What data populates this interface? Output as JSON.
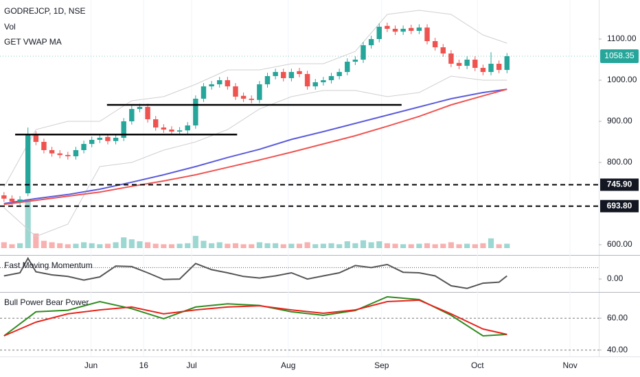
{
  "chart_data": [
    {
      "type": "candlestick",
      "title": "GODREJCP, 1D, NSE",
      "indicators": [
        "Vol",
        "GET VWAP MA"
      ],
      "xlim": [
        -0.5,
        74.5
      ],
      "xticks": [
        {
          "value": 10.9,
          "label": "Jun"
        },
        {
          "value": 17.5,
          "label": "16"
        },
        {
          "value": 23.5,
          "label": "Jul"
        },
        {
          "value": 35.6,
          "label": "Aug"
        },
        {
          "value": 47.3,
          "label": "Sep"
        },
        {
          "value": 59.3,
          "label": "Oct"
        },
        {
          "value": 70.9,
          "label": "Nov"
        }
      ],
      "ylim": [
        575,
        1195
      ],
      "yticks": [
        {
          "value": 600,
          "label": "600.00"
        },
        {
          "value": 800,
          "label": "800.00"
        },
        {
          "value": 900,
          "label": "900.00"
        },
        {
          "value": 1000,
          "label": "1000.00"
        },
        {
          "value": 1100,
          "label": "1100.00"
        }
      ],
      "up_color": "#26a69a",
      "down_color": "#ef5350",
      "open": [
        720,
        712,
        705,
        725,
        868,
        850,
        830,
        822,
        818,
        815,
        830,
        845,
        855,
        862,
        852,
        860,
        900,
        930,
        935,
        905,
        885,
        880,
        875,
        878,
        890,
        955,
        985,
        990,
        1000,
        985,
        962,
        955,
        952,
        990,
        1010,
        1020,
        1005,
        1022,
        1015,
        985,
        995,
        1000,
        1010,
        1020,
        1045,
        1050,
        1085,
        1100,
        1132,
        1125,
        1118,
        1127,
        1120,
        1128,
        1095,
        1080,
        1065,
        1042,
        1035,
        1050,
        1030,
        1020,
        1040,
        1025
      ],
      "high": [
        728,
        720,
        718,
        885,
        876,
        858,
        838,
        830,
        826,
        838,
        853,
        863,
        868,
        870,
        868,
        908,
        938,
        943,
        943,
        913,
        893,
        888,
        886,
        898,
        963,
        993,
        998,
        1008,
        1008,
        993,
        970,
        963,
        998,
        1018,
        1028,
        1028,
        1028,
        1030,
        1023,
        1003,
        1008,
        1018,
        1028,
        1053,
        1058,
        1093,
        1108,
        1138,
        1140,
        1133,
        1133,
        1135,
        1136,
        1136,
        1103,
        1088,
        1073,
        1050,
        1058,
        1058,
        1038,
        1068,
        1048,
        1066
      ],
      "low": [
        704,
        697,
        697,
        718,
        842,
        822,
        814,
        810,
        807,
        807,
        822,
        837,
        847,
        844,
        844,
        852,
        892,
        922,
        897,
        877,
        872,
        867,
        867,
        870,
        882,
        947,
        977,
        982,
        977,
        952,
        947,
        944,
        944,
        982,
        1002,
        997,
        997,
        1007,
        977,
        977,
        987,
        992,
        1002,
        1012,
        1037,
        1042,
        1077,
        1092,
        1117,
        1110,
        1110,
        1112,
        1112,
        1087,
        1072,
        1057,
        1032,
        1027,
        1027,
        1022,
        1012,
        1012,
        1017,
        1017
      ],
      "close": [
        712,
        705,
        710,
        868,
        850,
        830,
        822,
        818,
        815,
        830,
        845,
        855,
        860,
        852,
        860,
        900,
        930,
        935,
        905,
        885,
        880,
        875,
        878,
        890,
        955,
        985,
        990,
        1000,
        985,
        960,
        955,
        952,
        990,
        1010,
        1020,
        1005,
        1020,
        1015,
        985,
        995,
        1000,
        1010,
        1020,
        1045,
        1050,
        1085,
        1100,
        1130,
        1125,
        1118,
        1125,
        1120,
        1128,
        1095,
        1080,
        1065,
        1040,
        1035,
        1050,
        1030,
        1020,
        1040,
        1025,
        1058.35
      ],
      "last": 1058.35,
      "volume": {
        "vlim": [
          0,
          105
        ],
        "values": [
          12,
          8,
          10,
          100,
          30,
          15,
          12,
          10,
          8,
          9,
          12,
          10,
          8,
          9,
          12,
          22,
          18,
          14,
          12,
          9,
          8,
          8,
          9,
          10,
          25,
          15,
          10,
          12,
          9,
          10,
          8,
          8,
          12,
          10,
          10,
          8,
          9,
          9,
          12,
          8,
          9,
          10,
          8,
          14,
          10,
          16,
          12,
          14,
          10,
          9,
          8,
          8,
          9,
          10,
          8,
          9,
          12,
          8,
          9,
          8,
          10,
          20,
          8,
          9
        ]
      },
      "lines": [
        {
          "color": "#5b5bdc",
          "x": [
            0,
            4,
            8,
            12,
            16,
            20,
            24,
            28,
            32,
            36,
            40,
            44,
            48,
            52,
            56,
            60,
            63
          ],
          "values": [
            700,
            712,
            722,
            735,
            752,
            770,
            790,
            812,
            832,
            856,
            875,
            895,
            915,
            935,
            955,
            970,
            978
          ]
        },
        {
          "color": "#ef5350",
          "x": [
            0,
            4,
            8,
            12,
            16,
            20,
            24,
            28,
            32,
            36,
            40,
            44,
            48,
            52,
            56,
            60,
            63
          ],
          "values": [
            698,
            708,
            718,
            728,
            742,
            755,
            770,
            788,
            806,
            825,
            845,
            865,
            888,
            912,
            940,
            962,
            978
          ]
        },
        {
          "color": "#cfcfcf",
          "x": [
            0,
            4,
            8,
            12,
            16,
            20,
            24,
            28,
            32,
            36,
            40,
            44,
            48,
            52,
            56,
            60,
            63
          ],
          "values": [
            740,
            880,
            900,
            900,
            950,
            960,
            990,
            1025,
            1025,
            1040,
            1040,
            1070,
            1160,
            1170,
            1160,
            1110,
            1090
          ]
        },
        {
          "color": "#cfcfcf",
          "x": [
            0,
            4,
            8,
            12,
            16,
            20,
            24,
            28,
            32,
            36,
            40,
            44,
            48,
            52,
            56,
            60,
            63
          ],
          "values": [
            690,
            620,
            650,
            790,
            800,
            830,
            850,
            880,
            930,
            960,
            975,
            975,
            960,
            970,
            1010,
            1000,
            1000
          ]
        }
      ],
      "support": [
        {
          "value": 868,
          "x": [
            1.4,
            29.2
          ]
        },
        {
          "value": 940,
          "x": [
            12.9,
            49.8
          ]
        }
      ],
      "levels": [
        {
          "value": 745.9,
          "label": "745.90"
        },
        {
          "value": 693.8,
          "label": "693.80"
        }
      ]
    },
    {
      "type": "line",
      "title": "Fast Moving Momentum",
      "ylim": [
        -25,
        45
      ],
      "yticks": [
        {
          "value": 0,
          "label": "0.00"
        }
      ],
      "hlines": [
        22
      ],
      "series": [
        {
          "color": "#555555",
          "x": [
            0,
            2,
            3,
            4,
            6,
            8,
            10,
            12,
            14,
            16,
            18,
            20,
            22,
            24,
            26,
            28,
            30,
            32,
            34,
            36,
            38,
            40,
            42,
            44,
            46,
            48,
            50,
            52,
            54,
            56,
            58,
            60,
            62,
            63
          ],
          "values": [
            6,
            12,
            40,
            14,
            8,
            5,
            -2,
            4,
            25,
            24,
            12,
            -1,
            0,
            30,
            18,
            12,
            5,
            2,
            6,
            12,
            0,
            6,
            12,
            26,
            22,
            28,
            13,
            12,
            6,
            -13,
            -18,
            -8,
            -6,
            6
          ]
        }
      ]
    },
    {
      "type": "line",
      "title": "Bull Power Bear Power",
      "ylim": [
        36,
        76
      ],
      "yticks": [
        {
          "value": 40,
          "label": "40.00"
        },
        {
          "value": 60,
          "label": "60.00"
        }
      ],
      "series": [
        {
          "color": "#2e8b1e",
          "x": [
            0,
            4,
            8,
            12,
            16,
            20,
            24,
            28,
            32,
            36,
            40,
            44,
            48,
            52,
            56,
            60,
            63
          ],
          "values": [
            48.9,
            64,
            65,
            70.4,
            66,
            59.7,
            67,
            69,
            68,
            64,
            61.8,
            64.8,
            73.4,
            71.7,
            61.8,
            48.9,
            49.8
          ]
        },
        {
          "color": "#e8231c",
          "x": [
            0,
            4,
            8,
            12,
            16,
            20,
            24,
            28,
            32,
            36,
            40,
            44,
            48,
            52,
            56,
            60,
            63
          ],
          "values": [
            48.9,
            57.5,
            62.7,
            65.2,
            67,
            62.7,
            65.2,
            67,
            67.8,
            65.2,
            63.1,
            65.2,
            70.4,
            71.3,
            62.7,
            53.2,
            49.8
          ]
        }
      ]
    }
  ]
}
